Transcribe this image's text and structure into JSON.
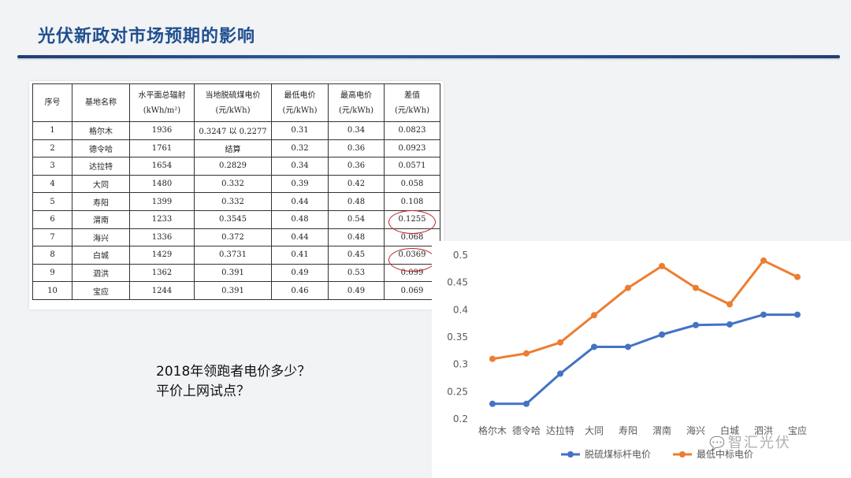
{
  "slide": {
    "title": "光伏新政对市场预期的影响"
  },
  "table": {
    "headers": [
      {
        "label": "序号",
        "unit": ""
      },
      {
        "label": "基地名称",
        "unit": ""
      },
      {
        "label": "水平面总辐射",
        "unit": "(kWh/m²)"
      },
      {
        "label": "当地脱硫煤电价",
        "unit": "(元/kWh)"
      },
      {
        "label": "最低电价",
        "unit": "(元/kWh)"
      },
      {
        "label": "最高电价",
        "unit": "(元/kWh)"
      },
      {
        "label": "差值",
        "unit": "(元/kWh)"
      }
    ],
    "rows": [
      [
        "1",
        "格尔木",
        "1936",
        "0.3247 以 0.2277",
        "0.31",
        "0.34",
        "0.0823"
      ],
      [
        "2",
        "德令哈",
        "1761",
        "结算",
        "0.32",
        "0.36",
        "0.0923"
      ],
      [
        "3",
        "达拉特",
        "1654",
        "0.2829",
        "0.34",
        "0.36",
        "0.0571"
      ],
      [
        "4",
        "大同",
        "1480",
        "0.332",
        "0.39",
        "0.42",
        "0.058"
      ],
      [
        "5",
        "寿阳",
        "1399",
        "0.332",
        "0.44",
        "0.48",
        "0.108"
      ],
      [
        "6",
        "渭南",
        "1233",
        "0.3545",
        "0.48",
        "0.54",
        "0.1255"
      ],
      [
        "7",
        "海兴",
        "1336",
        "0.372",
        "0.44",
        "0.48",
        "0.068"
      ],
      [
        "8",
        "白城",
        "1429",
        "0.3731",
        "0.41",
        "0.45",
        "0.0369"
      ],
      [
        "9",
        "泗洪",
        "1362",
        "0.391",
        "0.49",
        "0.53",
        "0.099"
      ],
      [
        "10",
        "宝应",
        "1244",
        "0.391",
        "0.46",
        "0.49",
        "0.069"
      ]
    ]
  },
  "question": {
    "line1": "2018年领跑者电价多少？",
    "line2": "平价上网试点？"
  },
  "chart_data": {
    "type": "line",
    "categories": [
      "格尔木",
      "德令哈",
      "达拉特",
      "大同",
      "寿阳",
      "渭南",
      "海兴",
      "白城",
      "泗洪",
      "宝应"
    ],
    "series": [
      {
        "name": "脱硫煤标杆电价",
        "color": "#4472c4",
        "values": [
          0.2277,
          0.2277,
          0.2829,
          0.332,
          0.332,
          0.3545,
          0.372,
          0.3731,
          0.391,
          0.391
        ]
      },
      {
        "name": "最低中标电价",
        "color": "#ed7d31",
        "values": [
          0.31,
          0.32,
          0.34,
          0.39,
          0.44,
          0.48,
          0.44,
          0.41,
          0.49,
          0.46
        ]
      }
    ],
    "yticks": [
      "0.2",
      "0.25",
      "0.3",
      "0.35",
      "0.4",
      "0.45",
      "0.5"
    ],
    "ylim": [
      0.2,
      0.5
    ],
    "legend_position": "bottom",
    "grid": false
  },
  "watermark": {
    "text": "智汇光伏"
  }
}
